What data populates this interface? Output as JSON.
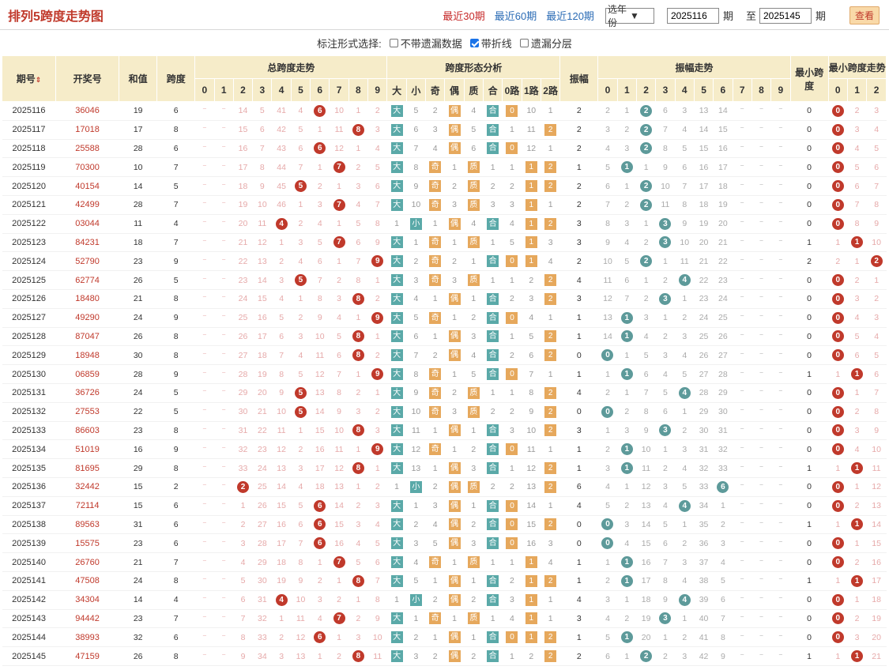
{
  "header": {
    "title": "排列5跨度走势图",
    "links": [
      "最近30期",
      "最近60期",
      "最近120期"
    ],
    "select": "选年份",
    "from": "2025116",
    "period_label": "期",
    "to_label": "至",
    "to": "2025145",
    "query": "查看"
  },
  "options": {
    "label": "标注形式选择:",
    "items": [
      {
        "label": "不带遗漏数据",
        "checked": false
      },
      {
        "label": "带折线",
        "checked": true
      },
      {
        "label": "遗漏分层",
        "checked": false
      }
    ]
  },
  "columns": {
    "qh": "期号",
    "kjh": "开奖号",
    "hz": "和值",
    "kd": "跨度",
    "zkd": "总跨度走势",
    "xt": "跨度形态分析",
    "zf": "振幅",
    "zfzs": "振幅走势",
    "zx": "最小跨度",
    "zxzs": "最小跨度走势",
    "digits": [
      "0",
      "1",
      "2",
      "3",
      "4",
      "5",
      "6",
      "7",
      "8",
      "9"
    ],
    "xtsub": [
      "大",
      "小",
      "奇",
      "偶",
      "质",
      "合",
      "0路",
      "1路",
      "2路"
    ],
    "zxsub": [
      "0",
      "1",
      "2"
    ]
  },
  "rows": [
    {
      "q": "2025116",
      "k": "36046",
      "h": "19",
      "d": "6",
      "kd": [
        "⁻",
        "⁻",
        "14",
        "5",
        "41",
        "4",
        "6",
        "10",
        "1",
        "2"
      ],
      "x": [
        "大",
        "5",
        "2",
        "偶",
        "4",
        "合",
        "0",
        "10",
        "1"
      ],
      "z": "2",
      "zz": [
        "2",
        "1",
        "2",
        "6",
        "3",
        "13",
        "14",
        "⁻",
        "⁻",
        "⁻"
      ],
      "mi": "0",
      "mz": [
        "0",
        "2",
        "3"
      ]
    },
    {
      "q": "2025117",
      "k": "17018",
      "h": "17",
      "d": "8",
      "kd": [
        "⁻",
        "⁻",
        "15",
        "6",
        "42",
        "5",
        "1",
        "11",
        "8",
        "3"
      ],
      "x": [
        "大",
        "6",
        "3",
        "偶",
        "5",
        "合",
        "1",
        "11",
        "2"
      ],
      "z": "2",
      "zz": [
        "3",
        "2",
        "2",
        "7",
        "4",
        "14",
        "15",
        "⁻",
        "⁻",
        "⁻"
      ],
      "mi": "0",
      "mz": [
        "0",
        "3",
        "4"
      ]
    },
    {
      "q": "2025118",
      "k": "25588",
      "h": "28",
      "d": "6",
      "kd": [
        "⁻",
        "⁻",
        "16",
        "7",
        "43",
        "6",
        "6",
        "12",
        "1",
        "4"
      ],
      "x": [
        "大",
        "7",
        "4",
        "偶",
        "6",
        "合",
        "0",
        "12",
        "1"
      ],
      "z": "2",
      "zz": [
        "4",
        "3",
        "2",
        "8",
        "5",
        "15",
        "16",
        "⁻",
        "⁻",
        "⁻"
      ],
      "mi": "0",
      "mz": [
        "0",
        "4",
        "5"
      ]
    },
    {
      "q": "2025119",
      "k": "70300",
      "h": "10",
      "d": "7",
      "kd": [
        "⁻",
        "⁻",
        "17",
        "8",
        "44",
        "7",
        "1",
        "7",
        "2",
        "5"
      ],
      "x": [
        "大",
        "8",
        "奇",
        "1",
        "质",
        "1",
        "1",
        "1",
        "2"
      ],
      "z": "1",
      "zz": [
        "5",
        "1",
        "1",
        "9",
        "6",
        "16",
        "17",
        "⁻",
        "⁻",
        "⁻"
      ],
      "mi": "0",
      "mz": [
        "0",
        "5",
        "6"
      ]
    },
    {
      "q": "2025120",
      "k": "40154",
      "h": "14",
      "d": "5",
      "kd": [
        "⁻",
        "⁻",
        "18",
        "9",
        "45",
        "5",
        "2",
        "1",
        "3",
        "6"
      ],
      "x": [
        "大",
        "9",
        "奇",
        "2",
        "质",
        "2",
        "2",
        "1",
        "2"
      ],
      "z": "2",
      "zz": [
        "6",
        "1",
        "2",
        "10",
        "7",
        "17",
        "18",
        "⁻",
        "⁻",
        "⁻"
      ],
      "mi": "0",
      "mz": [
        "0",
        "6",
        "7"
      ]
    },
    {
      "q": "2025121",
      "k": "42499",
      "h": "28",
      "d": "7",
      "kd": [
        "⁻",
        "⁻",
        "19",
        "10",
        "46",
        "1",
        "3",
        "7",
        "4",
        "7"
      ],
      "x": [
        "大",
        "10",
        "奇",
        "3",
        "质",
        "3",
        "3",
        "1",
        "1"
      ],
      "z": "2",
      "zz": [
        "7",
        "2",
        "2",
        "11",
        "8",
        "18",
        "19",
        "⁻",
        "⁻",
        "⁻"
      ],
      "mi": "0",
      "mz": [
        "0",
        "7",
        "8"
      ]
    },
    {
      "q": "2025122",
      "k": "03044",
      "h": "11",
      "d": "4",
      "kd": [
        "⁻",
        "⁻",
        "20",
        "11",
        "4",
        "2",
        "4",
        "1",
        "5",
        "8"
      ],
      "x": [
        "1",
        "小",
        "1",
        "偶",
        "4",
        "合",
        "4",
        "1",
        "2"
      ],
      "z": "3",
      "zz": [
        "8",
        "3",
        "1",
        "3",
        "9",
        "19",
        "20",
        "⁻",
        "⁻",
        "⁻"
      ],
      "mi": "0",
      "mz": [
        "0",
        "8",
        "9"
      ]
    },
    {
      "q": "2025123",
      "k": "84231",
      "h": "18",
      "d": "7",
      "kd": [
        "⁻",
        "⁻",
        "21",
        "12",
        "1",
        "3",
        "5",
        "7",
        "6",
        "9"
      ],
      "x": [
        "大",
        "1",
        "奇",
        "1",
        "质",
        "1",
        "5",
        "1",
        "3"
      ],
      "z": "3",
      "zz": [
        "9",
        "4",
        "2",
        "3",
        "10",
        "20",
        "21",
        "⁻",
        "⁻",
        "⁻"
      ],
      "mi": "1",
      "mz": [
        "1",
        "1",
        "10"
      ]
    },
    {
      "q": "2025124",
      "k": "52790",
      "h": "23",
      "d": "9",
      "kd": [
        "⁻",
        "⁻",
        "22",
        "13",
        "2",
        "4",
        "6",
        "1",
        "7",
        "9"
      ],
      "x": [
        "大",
        "2",
        "奇",
        "2",
        "1",
        "合",
        "0",
        "1",
        "4"
      ],
      "z": "2",
      "zz": [
        "10",
        "5",
        "2",
        "1",
        "11",
        "21",
        "22",
        "⁻",
        "⁻",
        "⁻"
      ],
      "mi": "2",
      "mz": [
        "2",
        "1",
        "2"
      ]
    },
    {
      "q": "2025125",
      "k": "62774",
      "h": "26",
      "d": "5",
      "kd": [
        "⁻",
        "⁻",
        "23",
        "14",
        "3",
        "5",
        "7",
        "2",
        "8",
        "1"
      ],
      "x": [
        "大",
        "3",
        "奇",
        "3",
        "质",
        "1",
        "1",
        "2",
        "2"
      ],
      "z": "4",
      "zz": [
        "11",
        "6",
        "1",
        "2",
        "4",
        "22",
        "23",
        "⁻",
        "⁻",
        "⁻"
      ],
      "mi": "0",
      "mz": [
        "0",
        "2",
        "1"
      ]
    },
    {
      "q": "2025126",
      "k": "18480",
      "h": "21",
      "d": "8",
      "kd": [
        "⁻",
        "⁻",
        "24",
        "15",
        "4",
        "1",
        "8",
        "3",
        "8",
        "2"
      ],
      "x": [
        "大",
        "4",
        "1",
        "偶",
        "1",
        "合",
        "2",
        "3",
        "2"
      ],
      "z": "3",
      "zz": [
        "12",
        "7",
        "2",
        "3",
        "1",
        "23",
        "24",
        "⁻",
        "⁻",
        "⁻"
      ],
      "mi": "0",
      "mz": [
        "0",
        "3",
        "2"
      ]
    },
    {
      "q": "2025127",
      "k": "49290",
      "h": "24",
      "d": "9",
      "kd": [
        "⁻",
        "⁻",
        "25",
        "16",
        "5",
        "2",
        "9",
        "4",
        "1",
        "9"
      ],
      "x": [
        "大",
        "5",
        "奇",
        "1",
        "2",
        "合",
        "0",
        "4",
        "1"
      ],
      "z": "1",
      "zz": [
        "13",
        "1",
        "3",
        "1",
        "2",
        "24",
        "25",
        "⁻",
        "⁻",
        "⁻"
      ],
      "mi": "0",
      "mz": [
        "0",
        "4",
        "3"
      ]
    },
    {
      "q": "2025128",
      "k": "87047",
      "h": "26",
      "d": "8",
      "kd": [
        "⁻",
        "⁻",
        "26",
        "17",
        "6",
        "3",
        "10",
        "5",
        "8",
        "1"
      ],
      "x": [
        "大",
        "6",
        "1",
        "偶",
        "3",
        "合",
        "1",
        "5",
        "2"
      ],
      "z": "1",
      "zz": [
        "14",
        "1",
        "4",
        "2",
        "3",
        "25",
        "26",
        "⁻",
        "⁻",
        "⁻"
      ],
      "mi": "0",
      "mz": [
        "0",
        "5",
        "4"
      ]
    },
    {
      "q": "2025129",
      "k": "18948",
      "h": "30",
      "d": "8",
      "kd": [
        "⁻",
        "⁻",
        "27",
        "18",
        "7",
        "4",
        "11",
        "6",
        "8",
        "2"
      ],
      "x": [
        "大",
        "7",
        "2",
        "偶",
        "4",
        "合",
        "2",
        "6",
        "2"
      ],
      "z": "0",
      "zz": [
        "0",
        "1",
        "5",
        "3",
        "4",
        "26",
        "27",
        "⁻",
        "⁻",
        "⁻"
      ],
      "mi": "0",
      "mz": [
        "0",
        "6",
        "5"
      ]
    },
    {
      "q": "2025130",
      "k": "06859",
      "h": "28",
      "d": "9",
      "kd": [
        "⁻",
        "⁻",
        "28",
        "19",
        "8",
        "5",
        "12",
        "7",
        "1",
        "9"
      ],
      "x": [
        "大",
        "8",
        "奇",
        "1",
        "5",
        "合",
        "0",
        "7",
        "1"
      ],
      "z": "1",
      "zz": [
        "1",
        "1",
        "6",
        "4",
        "5",
        "27",
        "28",
        "⁻",
        "⁻",
        "⁻"
      ],
      "mi": "1",
      "mz": [
        "1",
        "1",
        "6"
      ]
    },
    {
      "q": "2025131",
      "k": "36726",
      "h": "24",
      "d": "5",
      "kd": [
        "⁻",
        "⁻",
        "29",
        "20",
        "9",
        "5",
        "13",
        "8",
        "2",
        "1"
      ],
      "x": [
        "大",
        "9",
        "奇",
        "2",
        "质",
        "1",
        "1",
        "8",
        "2"
      ],
      "z": "4",
      "zz": [
        "2",
        "1",
        "7",
        "5",
        "4",
        "28",
        "29",
        "⁻",
        "⁻",
        "⁻"
      ],
      "mi": "0",
      "mz": [
        "0",
        "1",
        "7"
      ]
    },
    {
      "q": "2025132",
      "k": "27553",
      "h": "22",
      "d": "5",
      "kd": [
        "⁻",
        "⁻",
        "30",
        "21",
        "10",
        "5",
        "14",
        "9",
        "3",
        "2"
      ],
      "x": [
        "大",
        "10",
        "奇",
        "3",
        "质",
        "2",
        "2",
        "9",
        "2"
      ],
      "z": "0",
      "zz": [
        "0",
        "2",
        "8",
        "6",
        "1",
        "29",
        "30",
        "⁻",
        "⁻",
        "⁻"
      ],
      "mi": "0",
      "mz": [
        "0",
        "2",
        "8"
      ]
    },
    {
      "q": "2025133",
      "k": "86603",
      "h": "23",
      "d": "8",
      "kd": [
        "⁻",
        "⁻",
        "31",
        "22",
        "11",
        "1",
        "15",
        "10",
        "8",
        "3"
      ],
      "x": [
        "大",
        "11",
        "1",
        "偶",
        "1",
        "合",
        "3",
        "10",
        "2"
      ],
      "z": "3",
      "zz": [
        "1",
        "3",
        "9",
        "3",
        "2",
        "30",
        "31",
        "⁻",
        "⁻",
        "⁻"
      ],
      "mi": "0",
      "mz": [
        "0",
        "3",
        "9"
      ]
    },
    {
      "q": "2025134",
      "k": "51019",
      "h": "16",
      "d": "9",
      "kd": [
        "⁻",
        "⁻",
        "32",
        "23",
        "12",
        "2",
        "16",
        "11",
        "1",
        "9"
      ],
      "x": [
        "大",
        "12",
        "奇",
        "1",
        "2",
        "合",
        "0",
        "11",
        "1"
      ],
      "z": "1",
      "zz": [
        "2",
        "1",
        "10",
        "1",
        "3",
        "31",
        "32",
        "⁻",
        "⁻",
        "⁻"
      ],
      "mi": "0",
      "mz": [
        "0",
        "4",
        "10"
      ]
    },
    {
      "q": "2025135",
      "k": "81695",
      "h": "29",
      "d": "8",
      "kd": [
        "⁻",
        "⁻",
        "33",
        "24",
        "13",
        "3",
        "17",
        "12",
        "8",
        "1"
      ],
      "x": [
        "大",
        "13",
        "1",
        "偶",
        "3",
        "合",
        "1",
        "12",
        "2"
      ],
      "z": "1",
      "zz": [
        "3",
        "1",
        "11",
        "2",
        "4",
        "32",
        "33",
        "⁻",
        "⁻",
        "⁻"
      ],
      "mi": "1",
      "mz": [
        "1",
        "1",
        "11"
      ]
    },
    {
      "q": "2025136",
      "k": "32442",
      "h": "15",
      "d": "2",
      "kd": [
        "⁻",
        "⁻",
        "2",
        "25",
        "14",
        "4",
        "18",
        "13",
        "1",
        "2"
      ],
      "x": [
        "1",
        "小",
        "2",
        "偶",
        "质",
        "2",
        "2",
        "13",
        "2"
      ],
      "z": "6",
      "zz": [
        "4",
        "1",
        "12",
        "3",
        "5",
        "33",
        "6",
        "⁻",
        "⁻",
        "⁻"
      ],
      "mi": "0",
      "mz": [
        "0",
        "1",
        "12"
      ]
    },
    {
      "q": "2025137",
      "k": "72114",
      "h": "15",
      "d": "6",
      "kd": [
        "⁻",
        "⁻",
        "1",
        "26",
        "15",
        "5",
        "6",
        "14",
        "2",
        "3"
      ],
      "x": [
        "大",
        "1",
        "3",
        "偶",
        "1",
        "合",
        "0",
        "14",
        "1"
      ],
      "z": "4",
      "zz": [
        "5",
        "2",
        "13",
        "4",
        "4",
        "34",
        "1",
        "⁻",
        "⁻",
        "⁻"
      ],
      "mi": "0",
      "mz": [
        "0",
        "2",
        "13"
      ]
    },
    {
      "q": "2025138",
      "k": "89563",
      "h": "31",
      "d": "6",
      "kd": [
        "⁻",
        "⁻",
        "2",
        "27",
        "16",
        "6",
        "6",
        "15",
        "3",
        "4"
      ],
      "x": [
        "大",
        "2",
        "4",
        "偶",
        "2",
        "合",
        "0",
        "15",
        "2"
      ],
      "z": "0",
      "zz": [
        "0",
        "3",
        "14",
        "5",
        "1",
        "35",
        "2",
        "⁻",
        "⁻",
        "⁻"
      ],
      "mi": "1",
      "mz": [
        "1",
        "1",
        "14"
      ]
    },
    {
      "q": "2025139",
      "k": "15575",
      "h": "23",
      "d": "6",
      "kd": [
        "⁻",
        "⁻",
        "3",
        "28",
        "17",
        "7",
        "6",
        "16",
        "4",
        "5"
      ],
      "x": [
        "大",
        "3",
        "5",
        "偶",
        "3",
        "合",
        "0",
        "16",
        "3"
      ],
      "z": "0",
      "zz": [
        "0",
        "4",
        "15",
        "6",
        "2",
        "36",
        "3",
        "⁻",
        "⁻",
        "⁻"
      ],
      "mi": "0",
      "mz": [
        "0",
        "1",
        "15"
      ]
    },
    {
      "q": "2025140",
      "k": "26760",
      "h": "21",
      "d": "7",
      "kd": [
        "⁻",
        "⁻",
        "4",
        "29",
        "18",
        "8",
        "1",
        "7",
        "5",
        "6"
      ],
      "x": [
        "大",
        "4",
        "奇",
        "1",
        "质",
        "1",
        "1",
        "1",
        "4"
      ],
      "z": "1",
      "zz": [
        "1",
        "1",
        "16",
        "7",
        "3",
        "37",
        "4",
        "⁻",
        "⁻",
        "⁻"
      ],
      "mi": "0",
      "mz": [
        "0",
        "2",
        "16"
      ]
    },
    {
      "q": "2025141",
      "k": "47508",
      "h": "24",
      "d": "8",
      "kd": [
        "⁻",
        "⁻",
        "5",
        "30",
        "19",
        "9",
        "2",
        "1",
        "8",
        "7"
      ],
      "x": [
        "大",
        "5",
        "1",
        "偶",
        "1",
        "合",
        "2",
        "1",
        "2"
      ],
      "z": "1",
      "zz": [
        "2",
        "1",
        "17",
        "8",
        "4",
        "38",
        "5",
        "⁻",
        "⁻",
        "⁻"
      ],
      "mi": "1",
      "mz": [
        "1",
        "1",
        "17"
      ]
    },
    {
      "q": "2025142",
      "k": "34304",
      "h": "14",
      "d": "4",
      "kd": [
        "⁻",
        "⁻",
        "6",
        "31",
        "4",
        "10",
        "3",
        "2",
        "1",
        "8"
      ],
      "x": [
        "1",
        "小",
        "2",
        "偶",
        "2",
        "合",
        "3",
        "1",
        "1"
      ],
      "z": "4",
      "zz": [
        "3",
        "1",
        "18",
        "9",
        "4",
        "39",
        "6",
        "⁻",
        "⁻",
        "⁻"
      ],
      "mi": "0",
      "mz": [
        "0",
        "1",
        "18"
      ]
    },
    {
      "q": "2025143",
      "k": "94442",
      "h": "23",
      "d": "7",
      "kd": [
        "⁻",
        "⁻",
        "7",
        "32",
        "1",
        "11",
        "4",
        "7",
        "2",
        "9"
      ],
      "x": [
        "大",
        "1",
        "奇",
        "1",
        "质",
        "1",
        "4",
        "1",
        "1"
      ],
      "z": "3",
      "zz": [
        "4",
        "2",
        "19",
        "3",
        "1",
        "40",
        "7",
        "⁻",
        "⁻",
        "⁻"
      ],
      "mi": "0",
      "mz": [
        "0",
        "2",
        "19"
      ]
    },
    {
      "q": "2025144",
      "k": "38993",
      "h": "32",
      "d": "6",
      "kd": [
        "⁻",
        "⁻",
        "8",
        "33",
        "2",
        "12",
        "6",
        "1",
        "3",
        "10"
      ],
      "x": [
        "大",
        "2",
        "1",
        "偶",
        "1",
        "合",
        "0",
        "1",
        "2"
      ],
      "z": "1",
      "zz": [
        "5",
        "1",
        "20",
        "1",
        "2",
        "41",
        "8",
        "⁻",
        "⁻",
        "⁻"
      ],
      "mi": "0",
      "mz": [
        "0",
        "3",
        "20"
      ]
    },
    {
      "q": "2025145",
      "k": "47159",
      "h": "26",
      "d": "8",
      "kd": [
        "⁻",
        "⁻",
        "9",
        "34",
        "3",
        "13",
        "1",
        "2",
        "8",
        "11"
      ],
      "x": [
        "大",
        "3",
        "2",
        "偶",
        "2",
        "合",
        "1",
        "2",
        "2"
      ],
      "z": "2",
      "zz": [
        "6",
        "1",
        "2",
        "2",
        "3",
        "42",
        "9",
        "⁻",
        "⁻",
        "⁻"
      ],
      "mi": "1",
      "mz": [
        "1",
        "1",
        "21"
      ]
    }
  ]
}
